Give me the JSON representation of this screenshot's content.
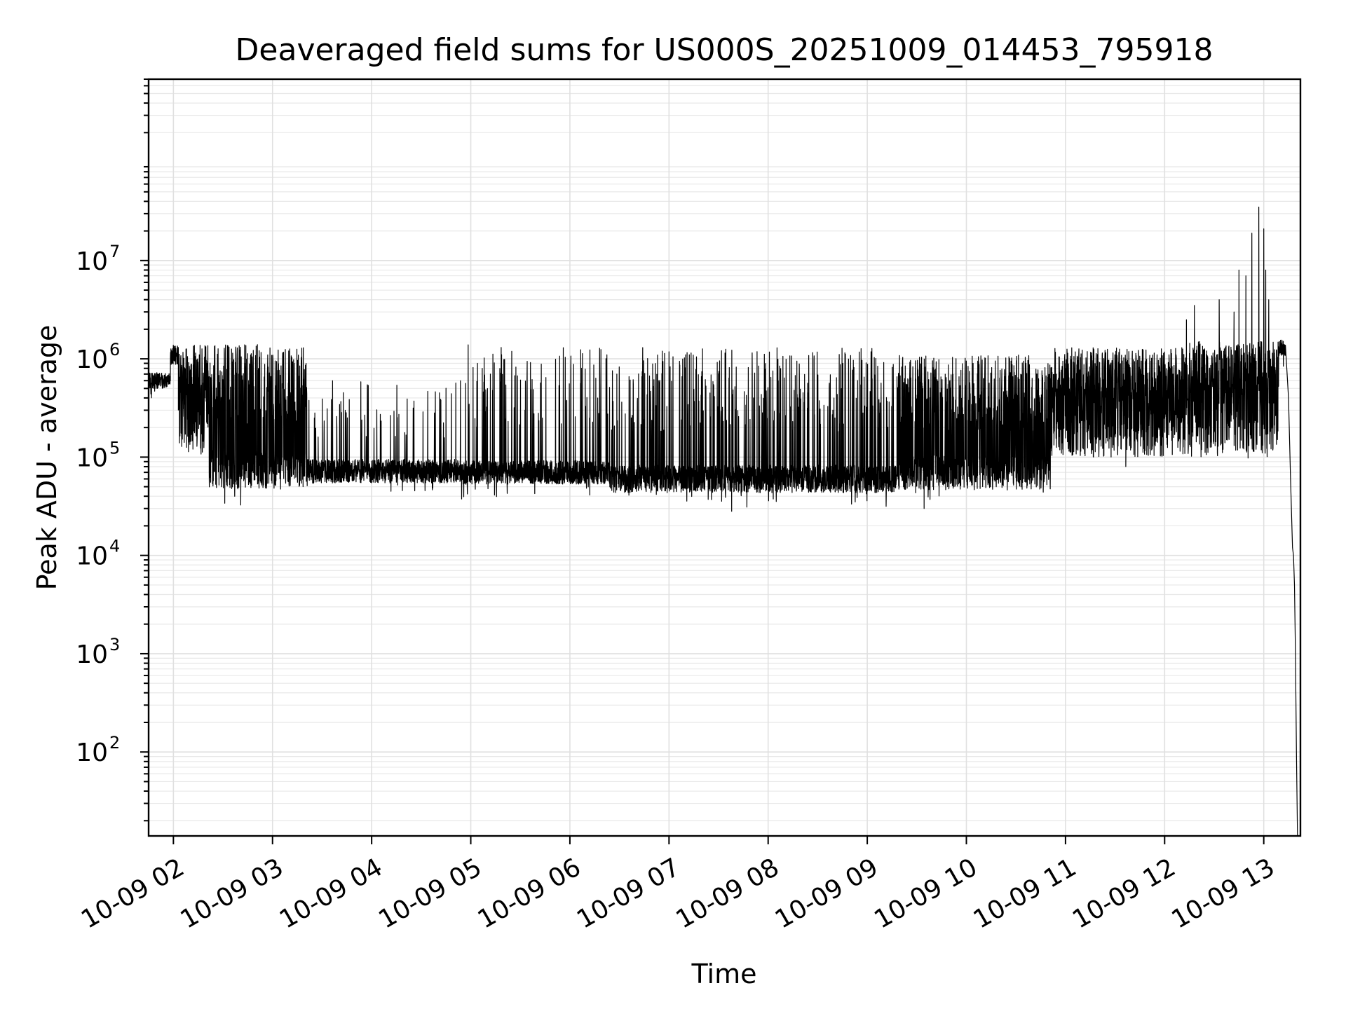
{
  "chart_data": {
    "type": "line",
    "title": "Deaveraged field sums for US000S_20251009_014453_795918",
    "xlabel": "Time",
    "ylabel": "Peak ADU - average",
    "yscale": "log",
    "ylim": [
      14,
      700000000
    ],
    "xlim_hours": [
      1.75,
      13.37
    ],
    "grid": "on",
    "legend": "none",
    "line_color": "#000000",
    "x_ticks": [
      {
        "hour": 2,
        "label": "10-09 02"
      },
      {
        "hour": 3,
        "label": "10-09 03"
      },
      {
        "hour": 4,
        "label": "10-09 04"
      },
      {
        "hour": 5,
        "label": "10-09 05"
      },
      {
        "hour": 6,
        "label": "10-09 06"
      },
      {
        "hour": 7,
        "label": "10-09 07"
      },
      {
        "hour": 8,
        "label": "10-09 08"
      },
      {
        "hour": 9,
        "label": "10-09 09"
      },
      {
        "hour": 10,
        "label": "10-09 10"
      },
      {
        "hour": 11,
        "label": "10-09 11"
      },
      {
        "hour": 12,
        "label": "10-09 12"
      },
      {
        "hour": 13,
        "label": "10-09 13"
      }
    ],
    "y_ticks": [
      {
        "value": 100,
        "base": "10",
        "exp": "2"
      },
      {
        "value": 1000,
        "base": "10",
        "exp": "3"
      },
      {
        "value": 10000,
        "base": "10",
        "exp": "4"
      },
      {
        "value": 100000,
        "base": "10",
        "exp": "5"
      },
      {
        "value": 1000000,
        "base": "10",
        "exp": "6"
      },
      {
        "value": 10000000,
        "base": "10",
        "exp": "7"
      }
    ],
    "series": [
      {
        "name": "deaveraged field sums",
        "envelope": [
          {
            "start": 1.75,
            "end": 1.97,
            "base": 600000,
            "peak": 750000,
            "spike_rate": 0.0,
            "noise": 0.08
          },
          {
            "start": 1.97,
            "end": 2.05,
            "base": 1100000,
            "peak": 1400000,
            "spike_rate": 0.0,
            "noise": 0.1
          },
          {
            "start": 2.05,
            "end": 2.35,
            "base": 250000,
            "peak": 1400000,
            "spike_rate": 0.6,
            "noise": 0.35
          },
          {
            "start": 2.35,
            "end": 3.35,
            "base": 75000,
            "peak": 1400000,
            "spike_rate": 0.45,
            "noise": 0.2
          },
          {
            "start": 3.35,
            "end": 4.9,
            "base": 72000,
            "peak": 600000,
            "spike_rate": 0.06,
            "noise": 0.12
          },
          {
            "start": 4.9,
            "end": 6.4,
            "base": 70000,
            "peak": 1400000,
            "spike_rate": 0.1,
            "noise": 0.12
          },
          {
            "start": 6.4,
            "end": 9.3,
            "base": 60000,
            "peak": 1300000,
            "spike_rate": 0.18,
            "noise": 0.14
          },
          {
            "start": 9.3,
            "end": 10.85,
            "base": 70000,
            "peak": 1100000,
            "spike_rate": 0.45,
            "noise": 0.18
          },
          {
            "start": 10.85,
            "end": 12.25,
            "base": 200000,
            "peak": 1300000,
            "spike_rate": 0.5,
            "noise": 0.3
          },
          {
            "start": 12.25,
            "end": 13.15,
            "base": 200000,
            "peak": 1500000,
            "spike_rate": 0.6,
            "noise": 0.3
          },
          {
            "start": 13.15,
            "end": 13.22,
            "base": 1300000,
            "peak": 1600000,
            "spike_rate": 0.0,
            "noise": 0.08
          }
        ],
        "notable_spikes": [
          {
            "hour": 12.95,
            "value": 35000000
          },
          {
            "hour": 13.0,
            "value": 21000000
          },
          {
            "hour": 12.88,
            "value": 19000000
          },
          {
            "hour": 12.82,
            "value": 7000000
          },
          {
            "hour": 12.75,
            "value": 8000000
          },
          {
            "hour": 12.7,
            "value": 3000000
          },
          {
            "hour": 12.55,
            "value": 4000000
          },
          {
            "hour": 12.3,
            "value": 3500000
          },
          {
            "hour": 12.22,
            "value": 2500000
          },
          {
            "hour": 13.05,
            "value": 4000000
          },
          {
            "hour": 13.02,
            "value": 8000000
          }
        ],
        "decay_tail": [
          {
            "hour": 13.22,
            "value": 1300000
          },
          {
            "hour": 13.25,
            "value": 400000
          },
          {
            "hour": 13.27,
            "value": 60000
          },
          {
            "hour": 13.29,
            "value": 12000
          },
          {
            "hour": 13.3,
            "value": 10000
          },
          {
            "hour": 13.31,
            "value": 5000
          },
          {
            "hour": 13.32,
            "value": 1000
          },
          {
            "hour": 13.33,
            "value": 100
          },
          {
            "hour": 13.34,
            "value": 14
          }
        ]
      }
    ]
  }
}
